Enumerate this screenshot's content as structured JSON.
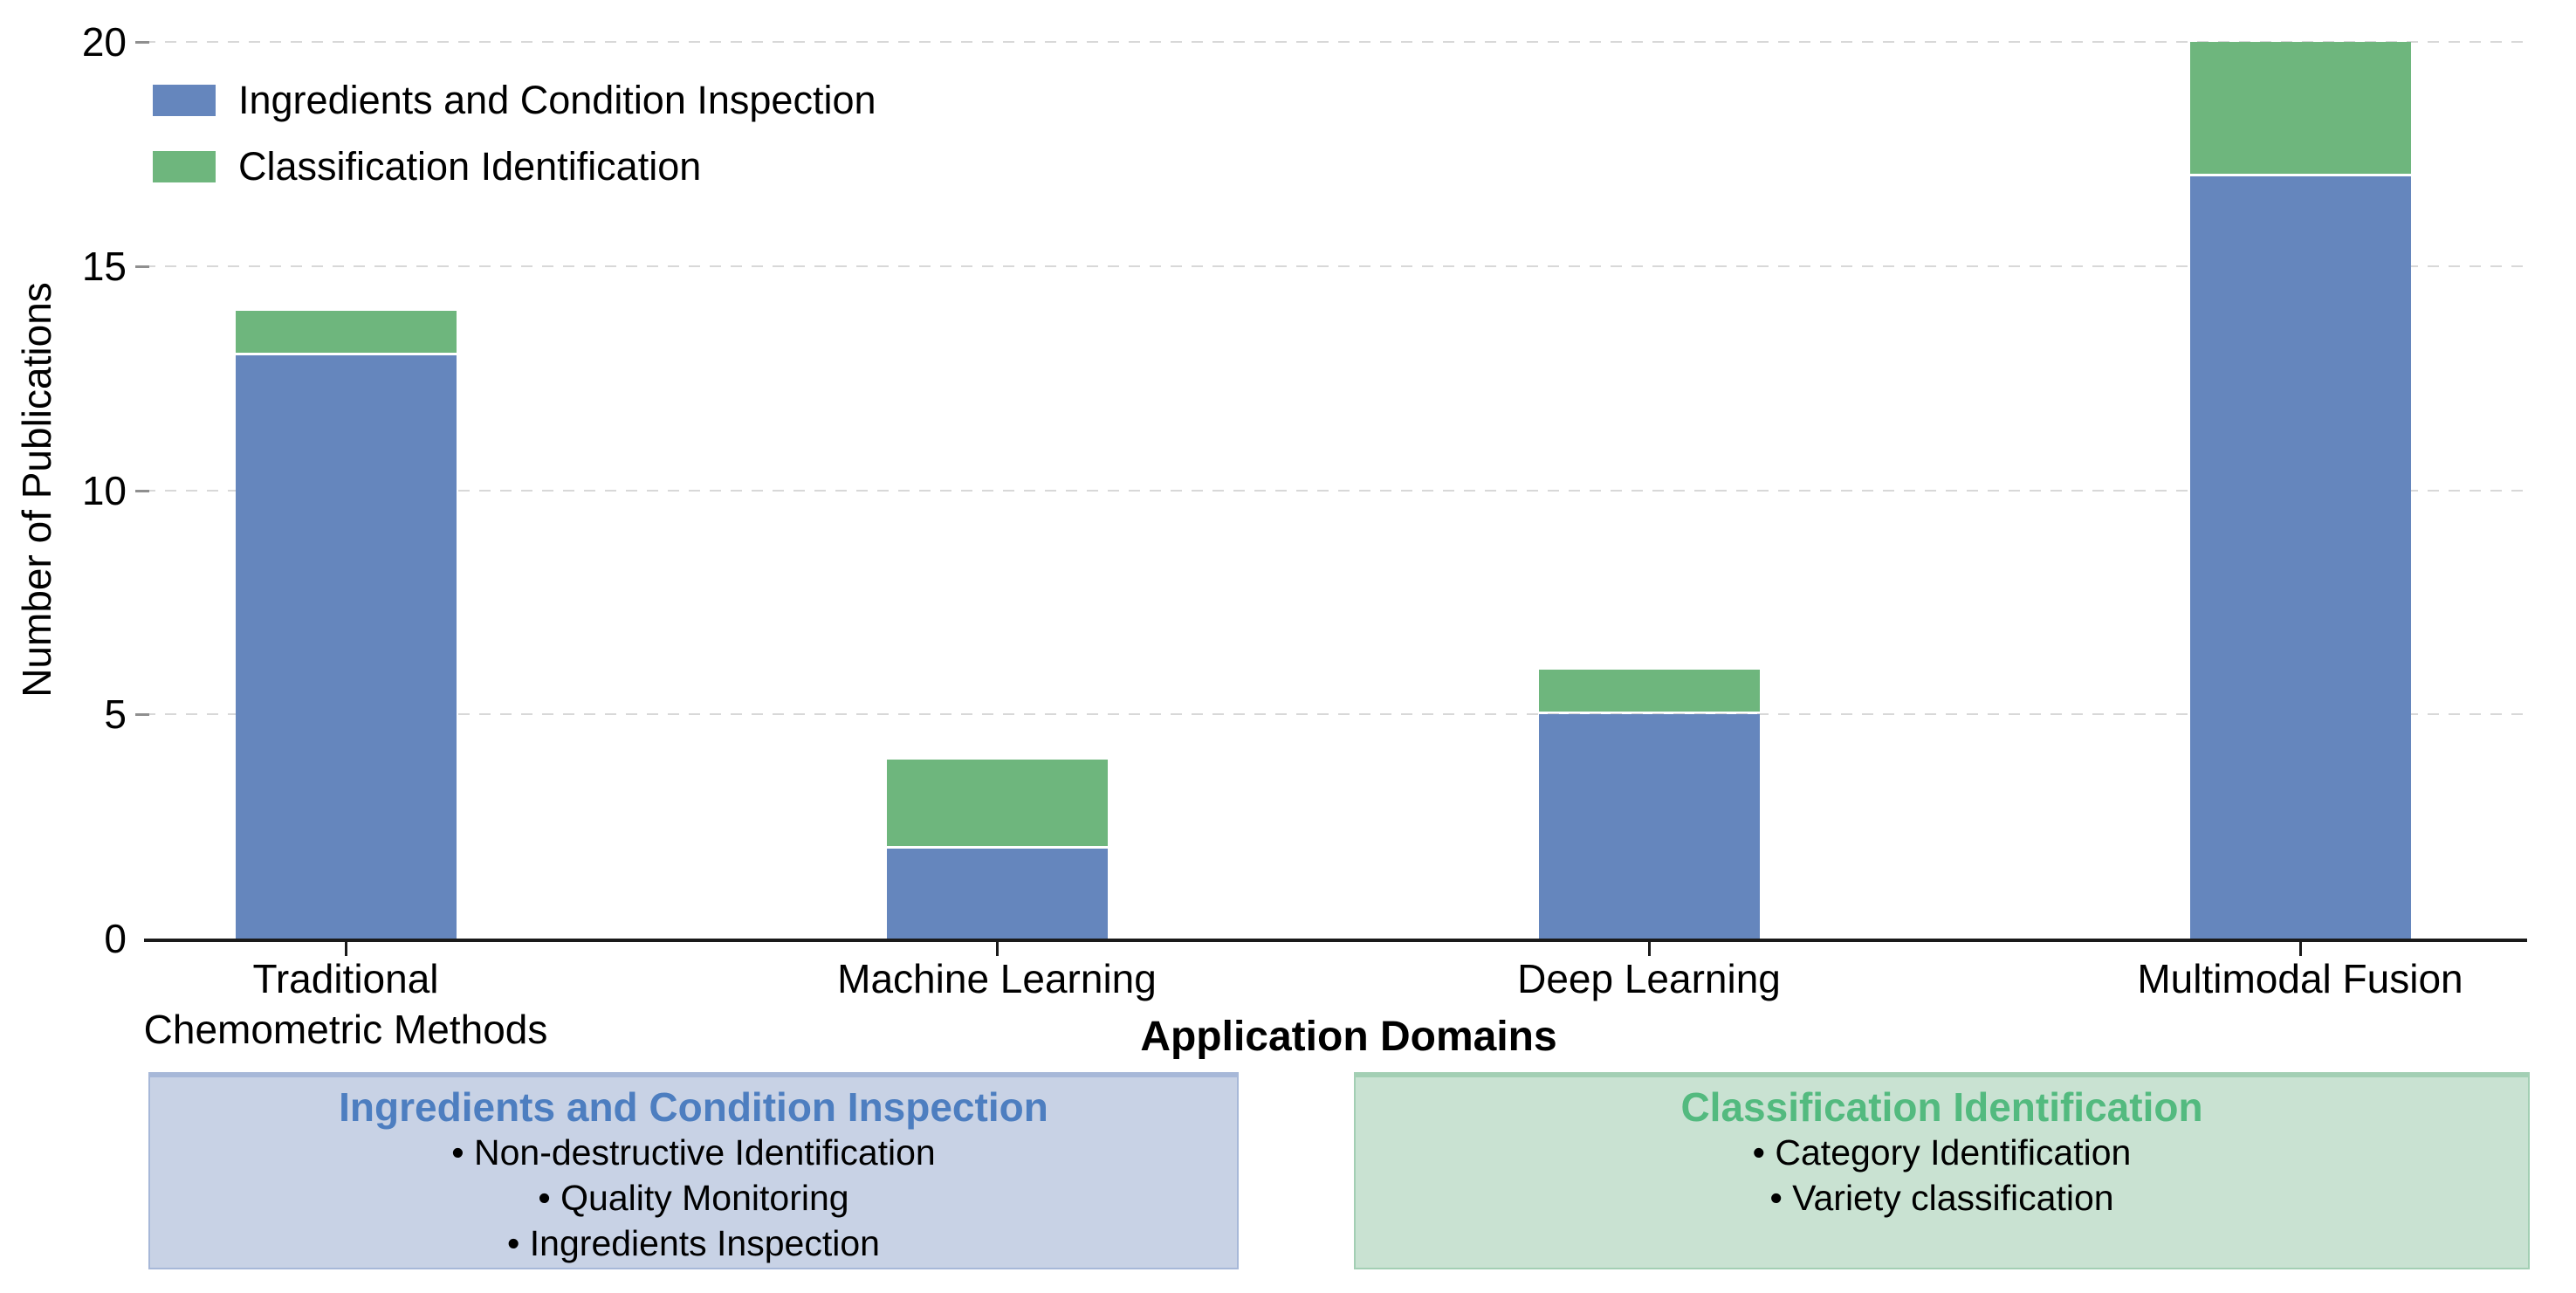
{
  "chart_data": {
    "type": "bar",
    "stacked": true,
    "categories": [
      "Traditional\nChemometric Methods",
      "Machine Learning",
      "Deep Learning",
      "Multimodal Fusion"
    ],
    "series": [
      {
        "name": "Ingredients and Condition Inspection",
        "color": "#6586bd",
        "values": [
          13,
          2,
          5,
          17
        ]
      },
      {
        "name": "Classification Identification",
        "color": "#6eb67d",
        "values": [
          1,
          2,
          1,
          3
        ]
      }
    ],
    "title": "",
    "xlabel": "Application Domains",
    "ylabel": "Number of Publications",
    "ylim": [
      0,
      20
    ],
    "yticks": [
      0,
      5,
      10,
      15,
      20
    ],
    "grid": {
      "axis": "y",
      "style": "dashed",
      "color": "#d8d8d8"
    },
    "legend": {
      "position": "upper-left",
      "entries": [
        "Ingredients and Condition Inspection",
        "Classification Identification"
      ]
    }
  },
  "axis_style": {
    "spine_color": "#1a1a1a",
    "tick_color": "#8f8f8f",
    "text_color": "#000000"
  },
  "annotations": {
    "bullet_prefix": "• ",
    "boxes": [
      {
        "title": "Ingredients and Condition Inspection",
        "title_color": "#4d7ec0",
        "bg_color": "#c8d2e5",
        "border_color": "#a7b8d8",
        "items": [
          "Non-destructive Identification",
          "Quality Monitoring",
          "Ingredients Inspection"
        ]
      },
      {
        "title": "Classification Identification",
        "title_color": "#53ba7f",
        "bg_color": "#c9e2d2",
        "border_color": "#a3cfb4",
        "items": [
          "Category Identification",
          "Variety classification"
        ]
      }
    ]
  }
}
